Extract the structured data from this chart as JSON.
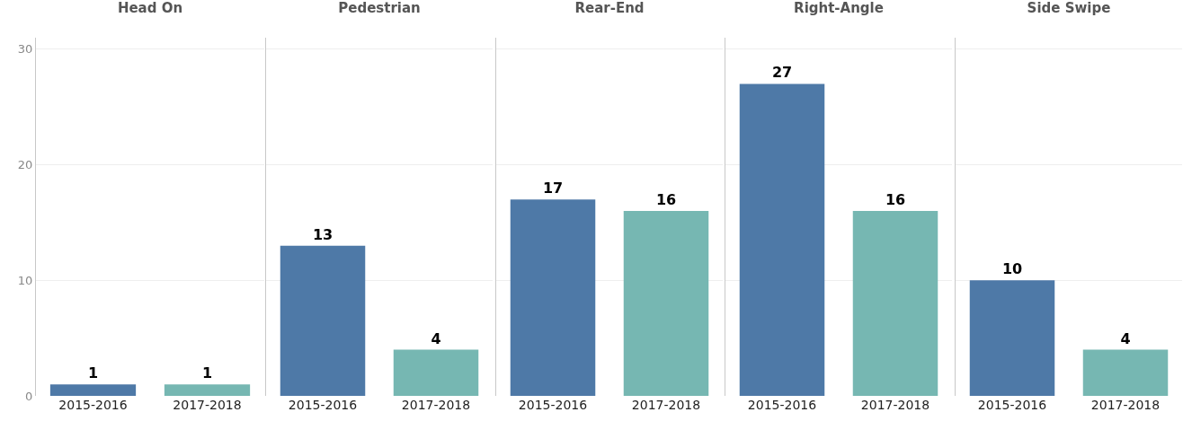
{
  "chart_data": [
    {
      "type": "bar",
      "title": "Head On",
      "categories": [
        "2015-2016",
        "2017-2018"
      ],
      "values": [
        1,
        1
      ],
      "colors": [
        "#4e79a7",
        "#76b7b2"
      ],
      "data_labels": true,
      "ylim": [
        0,
        31
      ],
      "yticks": [
        0,
        10,
        20,
        30
      ],
      "grid": "y"
    },
    {
      "type": "bar",
      "title": "Pedestrian",
      "categories": [
        "2015-2016",
        "2017-2018"
      ],
      "values": [
        13,
        4
      ],
      "colors": [
        "#4e79a7",
        "#76b7b2"
      ],
      "data_labels": true,
      "ylim": [
        0,
        31
      ],
      "yticks": [
        0,
        10,
        20,
        30
      ],
      "grid": "y",
      "tick_labels": "x"
    },
    {
      "type": "bar",
      "title": "Rear-End",
      "categories": [
        "2015-2016",
        "2017-2018"
      ],
      "values": [
        17,
        16
      ],
      "colors": [
        "#4e79a7",
        "#76b7b2"
      ],
      "data_labels": true,
      "ylim": [
        0,
        31
      ],
      "yticks": [
        0,
        10,
        20,
        30
      ],
      "grid": "y",
      "tick_labels": "x"
    },
    {
      "type": "bar",
      "title": "Right-Angle",
      "categories": [
        "2015-2016",
        "2017-2018"
      ],
      "values": [
        27,
        16
      ],
      "colors": [
        "#4e79a7",
        "#76b7b2"
      ],
      "data_labels": true,
      "ylim": [
        0,
        31
      ],
      "yticks": [
        0,
        10,
        20,
        30
      ],
      "grid": "y",
      "tick_labels": "x"
    },
    {
      "type": "bar",
      "title": "Side Swipe",
      "categories": [
        "2015-2016",
        "2017-2018"
      ],
      "values": [
        10,
        4
      ],
      "colors": [
        "#4e79a7",
        "#76b7b2"
      ],
      "data_labels": true,
      "ylim": [
        0,
        31
      ],
      "yticks": [
        0,
        10,
        20,
        30
      ],
      "grid": "y",
      "tick_labels": "x"
    }
  ]
}
